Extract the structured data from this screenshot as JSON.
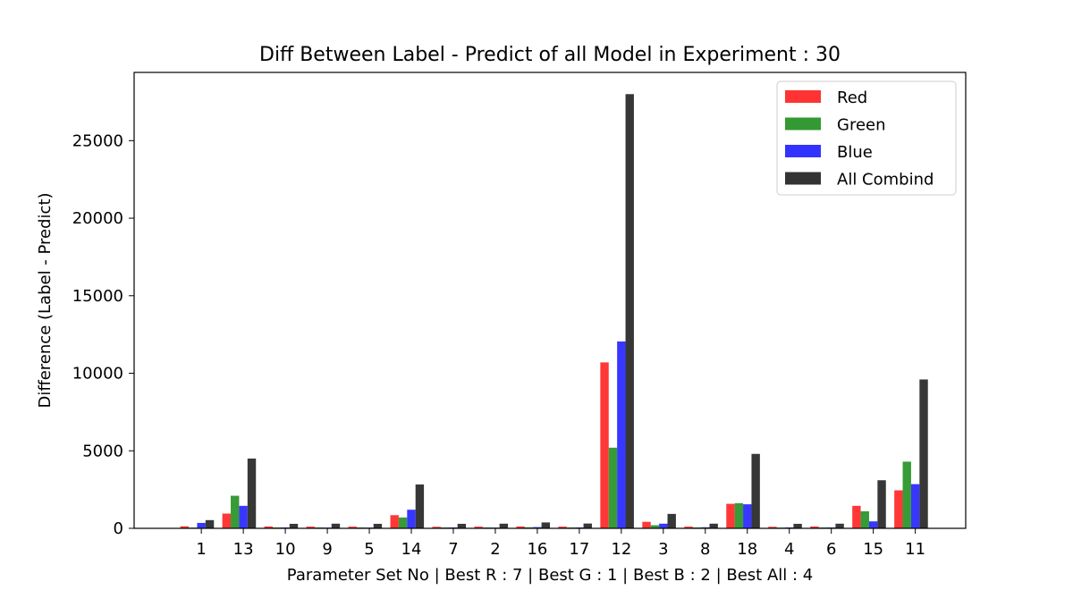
{
  "chart_data": {
    "type": "bar",
    "title": "Diff Between Label - Predict of all Model in Experiment : 30",
    "xlabel": "Parameter Set No | Best R : 7 | Best G : 1 | Best B : 2 | Best All : 4",
    "ylabel": "Difference (Label - Predict)",
    "categories": [
      "1",
      "13",
      "10",
      "9",
      "5",
      "14",
      "7",
      "2",
      "16",
      "17",
      "12",
      "3",
      "8",
      "18",
      "4",
      "6",
      "15",
      "11"
    ],
    "ylim": [
      0,
      29400
    ],
    "yticks": [
      0,
      5000,
      10000,
      15000,
      20000,
      25000
    ],
    "legend_position": "top-right",
    "grid": false,
    "series": [
      {
        "name": "Red",
        "color": "#ff3333",
        "values": [
          130,
          950,
          120,
          110,
          110,
          850,
          100,
          110,
          120,
          110,
          10700,
          420,
          110,
          1580,
          100,
          120,
          1450,
          2450
        ]
      },
      {
        "name": "Green",
        "color": "#339933",
        "values": [
          50,
          2100,
          60,
          60,
          60,
          700,
          60,
          60,
          70,
          60,
          5200,
          200,
          60,
          1620,
          50,
          60,
          1100,
          4300
        ]
      },
      {
        "name": "Blue",
        "color": "#3333ff",
        "values": [
          350,
          1450,
          60,
          50,
          50,
          1200,
          60,
          50,
          80,
          60,
          12050,
          300,
          70,
          1550,
          60,
          60,
          450,
          2850
        ]
      },
      {
        "name": "All Combind",
        "color": "#333333",
        "values": [
          530,
          4500,
          290,
          300,
          290,
          2830,
          290,
          300,
          380,
          310,
          28000,
          930,
          300,
          4800,
          290,
          300,
          3100,
          9600
        ]
      }
    ]
  }
}
